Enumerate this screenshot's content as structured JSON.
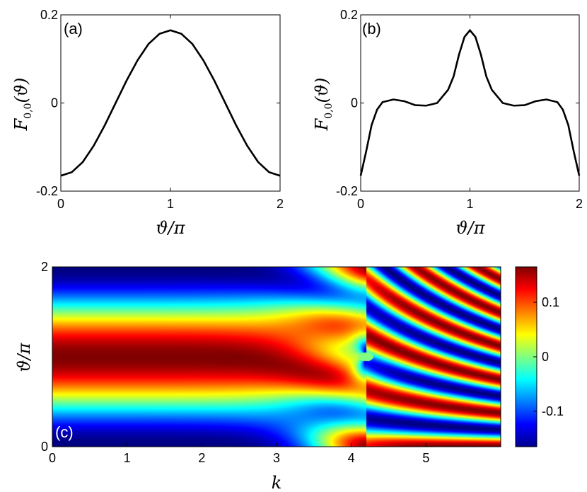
{
  "chart_data": [
    {
      "panel": "a",
      "type": "line",
      "panel_label": "(a)",
      "xlabel": "ϑ/π",
      "ylabel": "F0,0(ϑ)",
      "xlim": [
        0,
        2
      ],
      "ylim": [
        -0.2,
        0.2
      ],
      "xticks": [
        "0",
        "1",
        "2"
      ],
      "yticks": [
        "0.2",
        "0",
        "-0.2"
      ],
      "series": [
        {
          "name": "F00_a",
          "x": [
            0,
            0.1,
            0.2,
            0.3,
            0.4,
            0.5,
            0.6,
            0.7,
            0.8,
            0.9,
            1.0,
            1.1,
            1.2,
            1.3,
            1.4,
            1.5,
            1.6,
            1.7,
            1.8,
            1.9,
            2.0
          ],
          "y": [
            -0.165,
            -0.157,
            -0.134,
            -0.097,
            -0.051,
            0.0,
            0.051,
            0.097,
            0.134,
            0.157,
            0.165,
            0.157,
            0.134,
            0.097,
            0.051,
            0.0,
            -0.051,
            -0.097,
            -0.134,
            -0.157,
            -0.165
          ]
        }
      ]
    },
    {
      "panel": "b",
      "type": "line",
      "panel_label": "(b)",
      "xlabel": "ϑ/π",
      "ylabel": "F0,0(ϑ)",
      "xlim": [
        0,
        2
      ],
      "ylim": [
        -0.2,
        0.2
      ],
      "xticks": [
        "0",
        "1",
        "2"
      ],
      "yticks": [
        "0.2",
        "0",
        "-0.2"
      ],
      "series": [
        {
          "name": "F00_b",
          "x": [
            0,
            0.05,
            0.1,
            0.15,
            0.2,
            0.3,
            0.4,
            0.5,
            0.6,
            0.7,
            0.8,
            0.85,
            0.9,
            0.95,
            1.0,
            1.05,
            1.1,
            1.15,
            1.2,
            1.3,
            1.4,
            1.5,
            1.6,
            1.7,
            1.8,
            1.85,
            1.9,
            1.95,
            2.0
          ],
          "y": [
            -0.165,
            -0.11,
            -0.05,
            -0.015,
            0.002,
            0.008,
            0.004,
            -0.005,
            -0.006,
            0.0,
            0.03,
            0.06,
            0.11,
            0.15,
            0.165,
            0.15,
            0.11,
            0.06,
            0.03,
            0.0,
            -0.006,
            -0.005,
            0.004,
            0.008,
            0.002,
            -0.015,
            -0.05,
            -0.11,
            -0.165
          ]
        }
      ]
    },
    {
      "panel": "c",
      "type": "heatmap",
      "panel_label": "(c)",
      "xlabel": "k",
      "ylabel": "ϑ/π",
      "xlim": [
        0,
        6
      ],
      "ylim": [
        0,
        2
      ],
      "xticks": [
        "0",
        "1",
        "2",
        "3",
        "4",
        "5"
      ],
      "yticks": [
        "2",
        "0"
      ],
      "colorbar": {
        "range": [
          -0.165,
          0.165
        ],
        "ticks": [
          "0.1",
          "0",
          "-0.1"
        ],
        "colormap": "jet"
      },
      "singular_point_k": 4.2
    }
  ],
  "colors": {
    "curve": "#000000",
    "axes": "#000000",
    "background": "#ffffff"
  }
}
